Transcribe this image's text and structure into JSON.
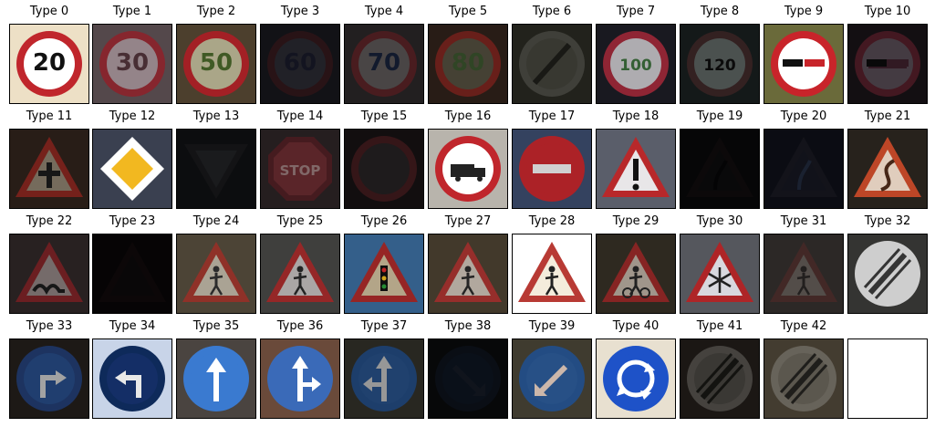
{
  "figure": {
    "panels": [
      {
        "label": "Type 0",
        "bg": "#ede0c6",
        "shape": "circle",
        "ring": "#c0262c",
        "fill": "#ffffff",
        "symbol": "text",
        "text": "20",
        "ink": "#111111",
        "dim": 0
      },
      {
        "label": "Type 1",
        "bg": "#6a5a5e",
        "shape": "circle",
        "ring": "#a8303a",
        "fill": "#b9a6ac",
        "symbol": "text",
        "text": "30",
        "ink": "#5a3a42",
        "dim": 0.2
      },
      {
        "label": "Type 2",
        "bg": "#5a4a36",
        "shape": "circle",
        "ring": "#c0262c",
        "fill": "#c8c4a0",
        "symbol": "text",
        "text": "50",
        "ink": "#4c6a2c",
        "dim": 0.15
      },
      {
        "label": "Type 3",
        "bg": "#282832",
        "shape": "circle",
        "ring": "#5a2c32",
        "fill": "#4a4a58",
        "symbol": "text",
        "text": "60",
        "ink": "#2a2e48",
        "dim": 0.55
      },
      {
        "label": "Type 4",
        "bg": "#3a3436",
        "shape": "circle",
        "ring": "#7a3034",
        "fill": "#7a7474",
        "symbol": "text",
        "text": "70",
        "ink": "#1e2c4c",
        "dim": 0.4
      },
      {
        "label": "Type 5",
        "bg": "#3e2c22",
        "shape": "circle",
        "ring": "#a03028",
        "fill": "#6a6450",
        "symbol": "text",
        "text": "80",
        "ink": "#4a6a3a",
        "dim": 0.35
      },
      {
        "label": "Type 6",
        "bg": "#3a3a30",
        "shape": "circle",
        "ring": "#6a6a60",
        "fill": "#5e5e52",
        "symbol": "slash",
        "ink": "#2a2a24",
        "dim": 0.4
      },
      {
        "label": "Type 7",
        "bg": "#1c1c24",
        "shape": "circle",
        "ring": "#a02a3a",
        "fill": "#c2c0c4",
        "symbol": "text",
        "text": "100",
        "ink": "#3a6a3a",
        "dim": 0.1
      },
      {
        "label": "Type 8",
        "bg": "#1e2424",
        "shape": "circle",
        "ring": "#4a3030",
        "fill": "#6c7472",
        "symbol": "text",
        "text": "120",
        "ink": "#111111",
        "dim": 0.3
      },
      {
        "label": "Type 9",
        "bg": "#6a6a3a",
        "shape": "circle",
        "ring": "#c8242a",
        "fill": "#ffffff",
        "symbol": "cars",
        "ink": "#c8242a",
        "dim": 0
      },
      {
        "label": "Type 10",
        "bg": "#241c22",
        "shape": "circle",
        "ring": "#7a2c3c",
        "fill": "#7c6c78",
        "symbol": "cars",
        "ink": "#5a3040",
        "dim": 0.45
      },
      {
        "label": "Type 11",
        "bg": "#3a2a22",
        "shape": "triangle",
        "ring": "#a83028",
        "fill": "#a89a84",
        "symbol": "cross",
        "ink": "#222222",
        "dim": 0.3
      },
      {
        "label": "Type 12",
        "bg": "#3a4050",
        "shape": "diamond",
        "ring": "#ffffff",
        "fill": "#f2b820",
        "symbol": "none",
        "ink": "#000000",
        "dim": 0
      },
      {
        "label": "Type 13",
        "bg": "#1c1e22",
        "shape": "invtriangle",
        "ring": "#2a2c30",
        "fill": "#3a3c42",
        "symbol": "none",
        "ink": "#000000",
        "dim": 0.55
      },
      {
        "label": "Type 14",
        "bg": "#3a2e30",
        "shape": "octagon",
        "ring": "#6a2a30",
        "fill": "#8a3a40",
        "symbol": "text",
        "text": "STOP",
        "ink": "#c6a0a0",
        "dim": 0.35
      },
      {
        "label": "Type 15",
        "bg": "#241c1e",
        "shape": "circle",
        "ring": "#6a2c30",
        "fill": "#3c3638",
        "symbol": "none",
        "ink": "#000000",
        "dim": 0.5
      },
      {
        "label": "Type 16",
        "bg": "#b8b4ac",
        "shape": "circle",
        "ring": "#c0262c",
        "fill": "#ffffff",
        "symbol": "truck",
        "ink": "#222222",
        "dim": 0
      },
      {
        "label": "Type 17",
        "bg": "#3a4a6a",
        "shape": "circle",
        "ring": "#c0262c",
        "fill": "#c0262c",
        "symbol": "bar",
        "ink": "#e8e8e8",
        "dim": 0.1
      },
      {
        "label": "Type 18",
        "bg": "#5a5e6a",
        "shape": "triangle",
        "ring": "#b8282a",
        "fill": "#e8e6e8",
        "symbol": "excl",
        "ink": "#111111",
        "dim": 0
      },
      {
        "label": "Type 19",
        "bg": "#141418",
        "shape": "triangle",
        "ring": "#2a2022",
        "fill": "#1e1e22",
        "symbol": "curve",
        "ink": "#0e0e12",
        "dim": 0.7
      },
      {
        "label": "Type 20",
        "bg": "#1a1c2a",
        "shape": "triangle",
        "ring": "#2a2c3a",
        "fill": "#26283a",
        "symbol": "curve",
        "ink": "#3a4a6a",
        "dim": 0.55
      },
      {
        "label": "Type 21",
        "bg": "#2a241e",
        "shape": "triangle",
        "ring": "#c84a2a",
        "fill": "#ecd8c8",
        "symbol": "scurve",
        "ink": "#4a2a1a",
        "dim": 0.05
      },
      {
        "label": "Type 22",
        "bg": "#3a3030",
        "shape": "triangle",
        "ring": "#9a2c30",
        "fill": "#a89a98",
        "symbol": "bumps",
        "ink": "#222222",
        "dim": 0.3
      },
      {
        "label": "Type 23",
        "bg": "#141012",
        "shape": "triangle",
        "ring": "#2a1a1c",
        "fill": "#1e1a1c",
        "symbol": "none",
        "ink": "#000000",
        "dim": 0.7
      },
      {
        "label": "Type 24",
        "bg": "#5a5040",
        "shape": "triangle",
        "ring": "#a83a30",
        "fill": "#c8c0ae",
        "symbol": "person",
        "ink": "#333333",
        "dim": 0.15
      },
      {
        "label": "Type 25",
        "bg": "#4a4a48",
        "shape": "triangle",
        "ring": "#b02e2e",
        "fill": "#c8c4c2",
        "symbol": "person",
        "ink": "#2a2a2a",
        "dim": 0.15
      },
      {
        "label": "Type 26",
        "bg": "#3a6a9a",
        "shape": "triangle",
        "ring": "#a82a2a",
        "fill": "#c8b898",
        "symbol": "light",
        "ink": "#111111",
        "dim": 0.1
      },
      {
        "label": "Type 27",
        "bg": "#4a4030",
        "shape": "triangle",
        "ring": "#a83430",
        "fill": "#c6bcb0",
        "symbol": "person",
        "ink": "#2a2a2a",
        "dim": 0.1
      },
      {
        "label": "Type 28",
        "bg": "#ffffff",
        "shape": "triangle",
        "ring": "#b83a34",
        "fill": "#f4ecdc",
        "symbol": "person",
        "ink": "#222222",
        "dim": 0
      },
      {
        "label": "Type 29",
        "bg": "#3a3428",
        "shape": "triangle",
        "ring": "#a82e2c",
        "fill": "#c8bcae",
        "symbol": "bike",
        "ink": "#2a2a2a",
        "dim": 0.2
      },
      {
        "label": "Type 30",
        "bg": "#5a5c62",
        "shape": "triangle",
        "ring": "#b8282a",
        "fill": "#e4e4ea",
        "symbol": "snow",
        "ink": "#222222",
        "dim": 0.05
      },
      {
        "label": "Type 31",
        "bg": "#4a4440",
        "shape": "triangle",
        "ring": "#6e4440",
        "fill": "#8a807a",
        "symbol": "person",
        "ink": "#3a3432",
        "dim": 0.4
      },
      {
        "label": "Type 32",
        "bg": "#3a3a38",
        "shape": "circle",
        "ring": "#e6e6e6",
        "fill": "#e6e6e6",
        "symbol": "slashes",
        "ink": "#3a3a3a",
        "dim": 0.1
      },
      {
        "label": "Type 33",
        "bg": "#2a2420",
        "shape": "circle",
        "ring": "#2a4a8a",
        "fill": "#2e5aa0",
        "symbol": "turnright",
        "ink": "#e8e8e8",
        "dim": 0.3
      },
      {
        "label": "Type 34",
        "bg": "#c8d4e8",
        "shape": "circle",
        "ring": "#0e2a5a",
        "fill": "#142e66",
        "symbol": "turnleft",
        "ink": "#e8e8e8",
        "dim": 0
      },
      {
        "label": "Type 35",
        "bg": "#4a4440",
        "shape": "circle",
        "ring": "#3a7ad0",
        "fill": "#3a7ad0",
        "symbol": "up",
        "ink": "#ffffff",
        "dim": 0
      },
      {
        "label": "Type 36",
        "bg": "#6a4a3a",
        "shape": "circle",
        "ring": "#3a6ab8",
        "fill": "#3a6ab8",
        "symbol": "upright",
        "ink": "#ffffff",
        "dim": 0
      },
      {
        "label": "Type 37",
        "bg": "#3a3830",
        "shape": "circle",
        "ring": "#2a5a9a",
        "fill": "#2e5e9e",
        "symbol": "upleft",
        "ink": "#d8d8d8",
        "dim": 0.3
      },
      {
        "label": "Type 38",
        "bg": "#121418",
        "shape": "circle",
        "ring": "#1a2436",
        "fill": "#1a2840",
        "symbol": "keepright",
        "ink": "#2a3448",
        "dim": 0.6
      },
      {
        "label": "Type 39",
        "bg": "#4a4638",
        "shape": "circle",
        "ring": "#2a5a9a",
        "fill": "#2e5e9e",
        "symbol": "keepleft",
        "ink": "#f0d8c8",
        "dim": 0.15
      },
      {
        "label": "Type 40",
        "bg": "#e8e0d0",
        "shape": "circle",
        "ring": "#1e52c8",
        "fill": "#1e52c8",
        "symbol": "round",
        "ink": "#ffffff",
        "dim": 0
      },
      {
        "label": "Type 41",
        "bg": "#2a2420",
        "shape": "circle",
        "ring": "#6a6660",
        "fill": "#5a5650",
        "symbol": "slashes",
        "ink": "#1e1e1a",
        "dim": 0.35
      },
      {
        "label": "Type 42",
        "bg": "#5a5040",
        "shape": "circle",
        "ring": "#8a8478",
        "fill": "#7a7468",
        "symbol": "slashes",
        "ink": "#2a2824",
        "dim": 0.25
      },
      {
        "label": "",
        "bg": "#ffffff",
        "shape": "blank",
        "ring": "#ffffff",
        "fill": "#ffffff",
        "symbol": "none",
        "ink": "#ffffff",
        "dim": 0
      }
    ]
  }
}
